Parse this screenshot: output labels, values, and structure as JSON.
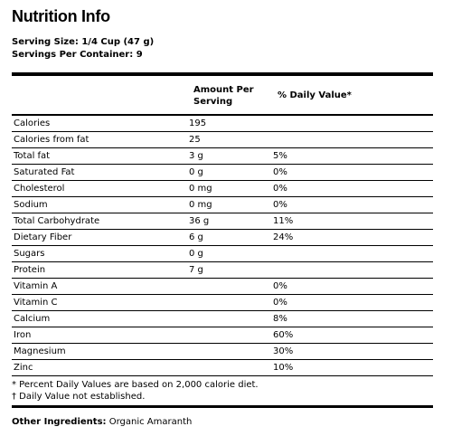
{
  "title": "Nutrition Info",
  "serving_size": "Serving Size: 1/4 Cup (47 g)",
  "servings_per_container": "Servings Per Container: 9",
  "headers": {
    "amount": "Amount Per Serving",
    "daily_value": "% Daily Value*"
  },
  "rows": [
    {
      "name": "Calories",
      "amount": "195",
      "dv": ""
    },
    {
      "name": "Calories from fat",
      "amount": "25",
      "dv": ""
    },
    {
      "name": "Total fat",
      "amount": "3 g",
      "dv": "5%"
    },
    {
      "name": "Saturated Fat",
      "amount": "0 g",
      "dv": "0%"
    },
    {
      "name": "Cholesterol",
      "amount": "0 mg",
      "dv": "0%"
    },
    {
      "name": "Sodium",
      "amount": "0 mg",
      "dv": "0%"
    },
    {
      "name": "Total Carbohydrate",
      "amount": "36 g",
      "dv": "11%"
    },
    {
      "name": "Dietary Fiber",
      "amount": "6 g",
      "dv": "24%"
    },
    {
      "name": "Sugars",
      "amount": "0 g",
      "dv": ""
    },
    {
      "name": "Protein",
      "amount": "7 g",
      "dv": ""
    },
    {
      "name": "Vitamin A",
      "amount": "",
      "dv": "0%"
    },
    {
      "name": "Vitamin C",
      "amount": "",
      "dv": "0%"
    },
    {
      "name": "Calcium",
      "amount": "",
      "dv": "8%"
    },
    {
      "name": "Iron",
      "amount": "",
      "dv": "60%"
    },
    {
      "name": "Magnesium",
      "amount": "",
      "dv": "30%"
    },
    {
      "name": "Zinc",
      "amount": "",
      "dv": "10%"
    }
  ],
  "footnotes": [
    "* Percent Daily Values are based on 2,000 calorie diet.",
    "† Daily Value not established."
  ],
  "other_ingredients": {
    "label": "Other Ingredients:",
    "value": " Organic Amaranth"
  }
}
